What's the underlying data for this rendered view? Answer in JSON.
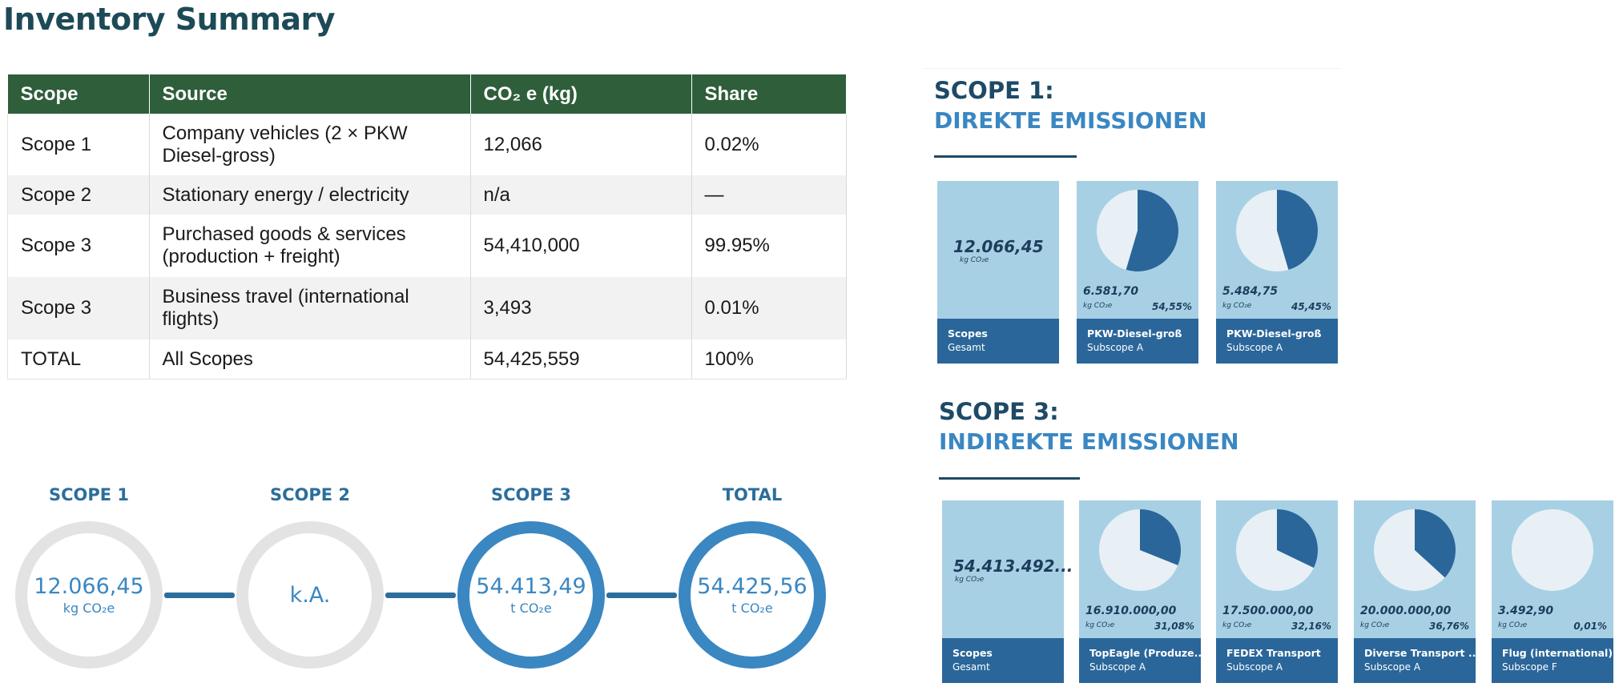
{
  "page": {
    "title": "Inventory Summary"
  },
  "table": {
    "headers": [
      "Scope",
      "Source",
      "CO₂ e (kg)",
      "Share"
    ],
    "rows": [
      [
        "Scope 1",
        "Company vehicles (2 × PKW Diesel-gross)",
        "12,066",
        "0.02%"
      ],
      [
        "Scope 2",
        "Stationary energy / electricity",
        "n/a",
        "—"
      ],
      [
        "Scope 3",
        "Purchased goods & services (production + freight)",
        "54,410,000",
        "99.95%"
      ],
      [
        "Scope 3",
        "Business travel (international flights)",
        "3,493",
        "0.01%"
      ],
      [
        "TOTAL",
        "All Scopes",
        "54,425,559",
        "100%"
      ]
    ]
  },
  "rings": [
    {
      "label": "SCOPE 1",
      "value": "12.066,45",
      "unit": "kg CO₂e",
      "highlight": false
    },
    {
      "label": "SCOPE 2",
      "value": "k.A.",
      "unit": "",
      "highlight": false
    },
    {
      "label": "SCOPE 3",
      "value": "54.413,49",
      "unit": "t CO₂e",
      "highlight": true
    },
    {
      "label": "TOTAL",
      "value": "54.425,56",
      "unit": "t CO₂e",
      "highlight": true
    }
  ],
  "scope1": {
    "heading_line1": "SCOPE 1:",
    "heading_line2": "DIREKTE EMISSIONEN",
    "total_card": {
      "value": "12.066,45",
      "unit": "kg CO₂e",
      "name": "Scopes",
      "sub": "Gesamt"
    },
    "cards": [
      {
        "value": "6.581,70",
        "unit": "kg CO₂e",
        "pct": "54,55%",
        "share": 0.5455,
        "name": "PKW-Diesel-groß",
        "sub": "Subscope A"
      },
      {
        "value": "5.484,75",
        "unit": "kg CO₂e",
        "pct": "45,45%",
        "share": 0.4545,
        "name": "PKW-Diesel-groß",
        "sub": "Subscope A"
      }
    ]
  },
  "scope3": {
    "heading_line1": "SCOPE 3:",
    "heading_line2": "INDIREKTE EMISSIONEN",
    "total_card": {
      "value": "54.413.492...",
      "unit": "kg CO₂e",
      "name": "Scopes",
      "sub": "Gesamt"
    },
    "cards": [
      {
        "value": "16.910.000,00",
        "unit": "kg CO₂e",
        "pct": "31,08%",
        "share": 0.3108,
        "name": "TopEagle (Produze...",
        "sub": "Subscope A"
      },
      {
        "value": "17.500.000,00",
        "unit": "kg CO₂e",
        "pct": "32,16%",
        "share": 0.3216,
        "name": "FEDEX Transport",
        "sub": "Subscope A"
      },
      {
        "value": "20.000.000,00",
        "unit": "kg CO₂e",
        "pct": "36,76%",
        "share": 0.3676,
        "name": "Diverse Transport ...",
        "sub": "Subscope A"
      },
      {
        "value": "3.492,90",
        "unit": "kg CO₂e",
        "pct": "0,01%",
        "share": 0.0001,
        "name": "Flug (international)",
        "sub": "Subscope F"
      }
    ]
  },
  "colors": {
    "dark_green": "#2e5e3a",
    "dark_blue": "#2a6699",
    "light_blue": "#a7d0e4",
    "accent_blue": "#3a87c2",
    "pie_light": "#e8f0f5"
  }
}
